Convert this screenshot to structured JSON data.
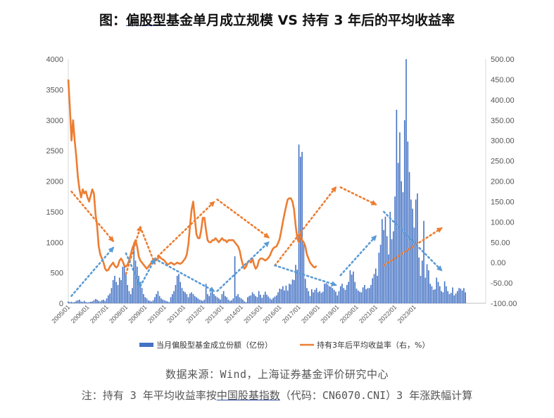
{
  "title": {
    "prefix": "图：",
    "underlined": "偏股型",
    "rest": "基金单月成立规模 VS 持有 3 年后的平均收益率"
  },
  "source": "数据来源：Wind，上海证券基金评价研究中心",
  "note": {
    "prefix": "注：持有 3 年平均收益率按",
    "underlined": "中国股基指数",
    "rest": "（代码：CN6070.CNI）3 年涨跌幅计算"
  },
  "chart_data": {
    "type": "bar+line",
    "x_tick_labels": [
      "2005/01",
      "2006/01",
      "2007/01",
      "2008/01",
      "2009/01",
      "2010/01",
      "2011/01",
      "2012/01",
      "2013/01",
      "2014/01",
      "2015/01",
      "2016/01",
      "2017/01",
      "2018/01",
      "2019/01",
      "2020/01",
      "2021/01",
      "2022/01",
      "2023/01"
    ],
    "left_axis": {
      "ylim": [
        0,
        4000
      ],
      "ticks": [
        "0",
        "500",
        "1000",
        "1500",
        "2000",
        "2500",
        "3000",
        "3500",
        "4000"
      ]
    },
    "right_axis": {
      "ylim": [
        -100,
        500
      ],
      "ticks": [
        "-100.00",
        "-50.00",
        "0.00",
        "50.00",
        "100.00",
        "150.00",
        "200.00",
        "250.00",
        "300.00",
        "350.00",
        "400.00",
        "450.00",
        "500.00"
      ]
    },
    "colors": {
      "bars": "#4472c4",
      "line": "#ed7d31",
      "trend_up_orange": "#ed7d31",
      "trend_blue": "#5b9bd5",
      "right_axis_negative": "#c00000"
    },
    "grid": false,
    "legend_position": "bottom",
    "series": [
      {
        "name": "当月偏股型基金成立份额（亿份）",
        "type": "bar",
        "axis": "left",
        "start": "2005/01",
        "frequency": "monthly",
        "values": [
          30,
          20,
          25,
          15,
          20,
          40,
          50,
          60,
          30,
          25,
          40,
          20,
          15,
          20,
          25,
          30,
          50,
          70,
          60,
          40,
          30,
          50,
          60,
          40,
          80,
          130,
          160,
          250,
          380,
          450,
          350,
          300,
          420,
          380,
          600,
          650,
          500,
          300,
          200,
          150,
          250,
          1000,
          700,
          600,
          450,
          350,
          250,
          150,
          100,
          80,
          50,
          40,
          30,
          50,
          100,
          150,
          200,
          120,
          80,
          60,
          50,
          40,
          30,
          20,
          100,
          150,
          200,
          300,
          450,
          480,
          350,
          250,
          200,
          180,
          150,
          100,
          160,
          180,
          150,
          120,
          100,
          80,
          60,
          50,
          40,
          60,
          320,
          150,
          120,
          180,
          200,
          150,
          120,
          100,
          80,
          60,
          150,
          200,
          120,
          100,
          60,
          40,
          50,
          80,
          770,
          120,
          150,
          100,
          80,
          60,
          30,
          20,
          100,
          120,
          130,
          180,
          150,
          120,
          100,
          200,
          140,
          90,
          140,
          190,
          140,
          110,
          80,
          60,
          90,
          110,
          130,
          180,
          240,
          230,
          280,
          210,
          290,
          210,
          320,
          310,
          390,
          380,
          630,
          550,
          2600,
          2400,
          2480,
          1000,
          400,
          250,
          200,
          120,
          230,
          180,
          220,
          250,
          180,
          200,
          170,
          190,
          320,
          330,
          310,
          280,
          270,
          250,
          220,
          190,
          130,
          200,
          280,
          320,
          250,
          220,
          300,
          350,
          540,
          470,
          520,
          350,
          240,
          210,
          190,
          180,
          260,
          300,
          230,
          250,
          250,
          300,
          410,
          480,
          570,
          450,
          830,
          960,
          1380,
          1200,
          1420,
          1100,
          800,
          1500,
          1050,
          1180,
          1750,
          3170,
          2300,
          2800,
          2000,
          1820,
          3000,
          4000,
          2650,
          2150,
          1700,
          1550,
          1240,
          1700,
          1800,
          750,
          450,
          700,
          1350,
          420,
          640,
          540,
          320,
          280,
          220,
          230,
          420,
          350,
          280,
          200,
          180,
          360,
          280,
          200,
          150,
          170,
          260,
          130,
          160,
          200,
          250,
          240,
          210,
          250,
          180
        ]
      },
      {
        "name": "持有3年后平均收益率（右，%）",
        "type": "line",
        "axis": "right",
        "start": "2005/01",
        "frequency": "monthly",
        "values": [
          450,
          380,
          300,
          350,
          300,
          260,
          210,
          180,
          160,
          180,
          170,
          175,
          160,
          150,
          165,
          180,
          170,
          120,
          90,
          40,
          20,
          10,
          0,
          -15,
          -20,
          -18,
          -10,
          -5,
          0,
          -8,
          -12,
          -8,
          5,
          10,
          3,
          -8,
          -10,
          -5,
          5,
          20,
          35,
          45,
          55,
          40,
          15,
          5,
          0,
          -5,
          -10,
          -15,
          -10,
          -5,
          0,
          2,
          5,
          6,
          10,
          15,
          10,
          8,
          5,
          0,
          -5,
          -3,
          0,
          -2,
          -5,
          -3,
          0,
          -2,
          -3,
          0,
          5,
          10,
          20,
          45,
          90,
          130,
          150,
          110,
          70,
          60,
          60,
          80,
          110,
          110,
          80,
          55,
          50,
          50,
          55,
          55,
          60,
          55,
          50,
          55,
          60,
          55,
          55,
          50,
          55,
          55,
          55,
          55,
          50,
          45,
          40,
          30,
          10,
          -5,
          -15,
          -10,
          0,
          5,
          0,
          10,
          -5,
          -15,
          -10,
          5,
          10,
          10,
          8,
          5,
          8,
          12,
          18,
          28,
          35,
          38,
          40,
          48,
          58,
          78,
          100,
          120,
          138,
          155,
          158,
          158,
          150,
          130,
          90,
          60,
          50,
          70,
          55,
          50,
          40,
          20,
          10,
          0,
          -5,
          -10,
          -12,
          -8
        ]
      }
    ],
    "annotations": [
      {
        "type": "trend_arrow",
        "color": "orange",
        "from": "2005/03",
        "to": "2007/05",
        "direction": "down"
      },
      {
        "type": "trend_arrow",
        "color": "blue",
        "from": "2005/03",
        "to": "2007/05",
        "direction": "up"
      },
      {
        "type": "trend_arrow",
        "color": "orange",
        "from": "2008/01",
        "to": "2008/10",
        "direction": "up"
      },
      {
        "type": "trend_arrow",
        "color": "blue",
        "from": "2008/01",
        "to": "2008/10",
        "direction": "down"
      },
      {
        "type": "trend_arrow",
        "color": "orange",
        "from": "2008/10",
        "to": "2009/07",
        "direction": "down"
      },
      {
        "type": "trend_arrow",
        "color": "blue",
        "from": "2008/10",
        "to": "2009/07",
        "direction": "up"
      },
      {
        "type": "trend_arrow",
        "color": "orange",
        "from": "2009/07",
        "to": "2012/08",
        "direction": "up"
      },
      {
        "type": "trend_arrow",
        "color": "blue",
        "from": "2009/07",
        "to": "2012/08",
        "direction": "down"
      },
      {
        "type": "trend_arrow",
        "color": "orange",
        "from": "2012/10",
        "to": "2015/06",
        "direction": "down"
      },
      {
        "type": "trend_arrow",
        "color": "blue",
        "from": "2012/10",
        "to": "2015/06",
        "direction": "up"
      },
      {
        "type": "trend_arrow",
        "color": "orange",
        "from": "2015/10",
        "to": "2018/12",
        "direction": "up"
      },
      {
        "type": "trend_arrow",
        "color": "blue",
        "from": "2015/10",
        "to": "2018/12",
        "direction": "down"
      },
      {
        "type": "trend_arrow",
        "color": "orange",
        "from": "2019/03",
        "to": "2021/01",
        "direction": "down"
      },
      {
        "type": "trend_arrow",
        "color": "blue",
        "from": "2019/03",
        "to": "2021/01",
        "direction": "up"
      },
      {
        "type": "trend_arrow",
        "color": "orange",
        "from": "2021/06",
        "to": "2024/06",
        "direction": "up"
      },
      {
        "type": "trend_arrow",
        "color": "blue",
        "from": "2021/06",
        "to": "2024/06",
        "direction": "down"
      }
    ]
  }
}
